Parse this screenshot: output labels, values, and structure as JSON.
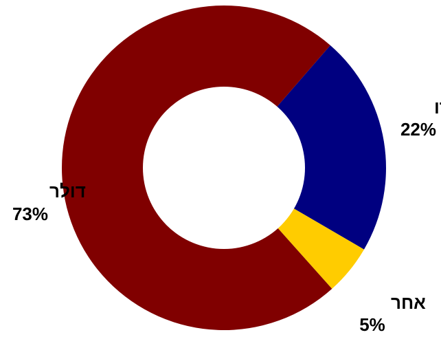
{
  "chart_data": {
    "type": "pie",
    "style": "donut",
    "slices": [
      {
        "label": "אירו",
        "value": 22,
        "value_label": "22%",
        "color": "#000080"
      },
      {
        "label": "אחר",
        "value": 5,
        "value_label": "5%",
        "color": "#FFCC00"
      },
      {
        "label": "דולר",
        "value": 73,
        "value_label": "73%",
        "color": "#800000"
      }
    ]
  }
}
